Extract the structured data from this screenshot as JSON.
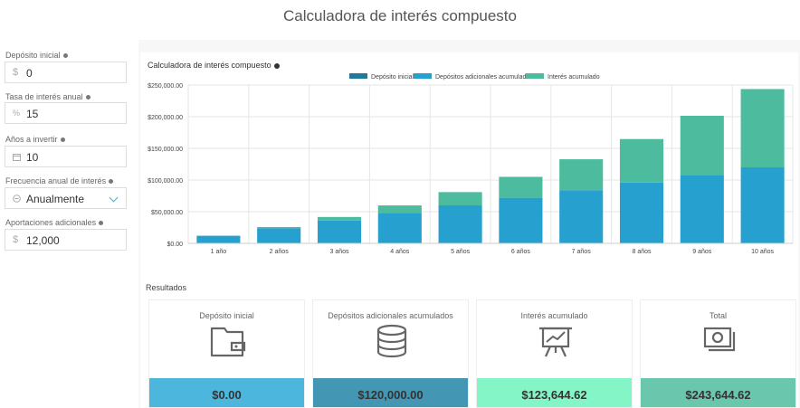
{
  "page": {
    "title": "Calculadora de interés compuesto"
  },
  "form": {
    "initial_deposit": {
      "label": "Depósito inicial",
      "prefix": "$",
      "value": "0"
    },
    "interest_rate": {
      "label": "Tasa de interés anual",
      "prefix": "%",
      "value": "15"
    },
    "years": {
      "label": "Años a invertir",
      "value": "10",
      "icon": "calendar-icon"
    },
    "frequency": {
      "label": "Frecuencia anual de interés",
      "value": "Anualmente",
      "icon": "clock-icon"
    },
    "additional": {
      "label": "Aportaciones adicionales",
      "prefix": "$",
      "value": "12,000"
    }
  },
  "chart_data": {
    "type": "bar",
    "stacked": true,
    "title": "Calculadora de interés compuesto",
    "legend_position": "top",
    "categories": [
      "1 año",
      "2 años",
      "3 años",
      "4 años",
      "5 años",
      "6 años",
      "7 años",
      "8 años",
      "9 años",
      "10 años"
    ],
    "series": [
      {
        "name": "Depósito inicial",
        "color": "#1f7a9c",
        "values": [
          0,
          0,
          0,
          0,
          0,
          0,
          0,
          0,
          0,
          0
        ]
      },
      {
        "name": "Depósitos adicionales acumulados",
        "color": "#25a0cf",
        "values": [
          12000,
          24000,
          36000,
          48000,
          60000,
          72000,
          84000,
          96000,
          108000,
          120000
        ]
      },
      {
        "name": "Interés acumulado",
        "color": "#4dbc9e",
        "values": [
          0,
          1800,
          5670,
          11921,
          20909,
          33045,
          48802,
          68722,
          93430,
          123645
        ]
      }
    ],
    "ylim": [
      0,
      250000
    ],
    "yticks": [
      0,
      50000,
      100000,
      150000,
      200000,
      250000
    ],
    "ytick_labels": [
      "$0.00",
      "$50,000.00",
      "$100,000.00",
      "$150,000.00",
      "$200,000.00",
      "$250,000.00"
    ],
    "grid": true
  },
  "results": {
    "title": "Resultados",
    "cards": [
      {
        "label": "Depósito inicial",
        "value": "$0.00",
        "color": "#4cb6dc",
        "icon": "wallet-icon"
      },
      {
        "label": "Depósitos adicionales acumulados",
        "value": "$120,000.00",
        "color": "#4396b4",
        "icon": "coins-icon"
      },
      {
        "label": "Interés acumulado",
        "value": "$123,644.62",
        "color": "#84f5c7",
        "icon": "chart-presentation-icon"
      },
      {
        "label": "Total",
        "value": "$243,644.62",
        "color": "#6ac6ad",
        "icon": "money-icon"
      }
    ]
  }
}
